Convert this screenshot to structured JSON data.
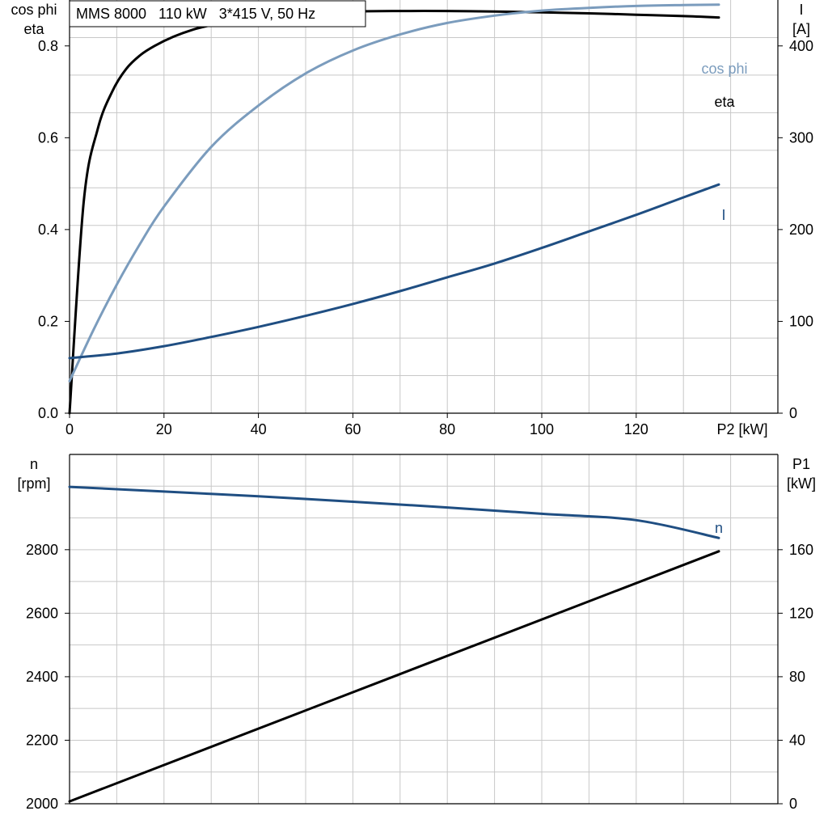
{
  "title": "MMS 8000   110 kW   3*415 V, 50 Hz",
  "chart_data": [
    {
      "type": "line",
      "x_axis": {
        "label": "P2 [kW]",
        "range": [
          0,
          150
        ],
        "ticks": [
          0,
          20,
          40,
          60,
          80,
          100,
          120
        ]
      },
      "y_left": {
        "label_lines": [
          "cos phi",
          "eta"
        ],
        "range": [
          0,
          0.9
        ],
        "ticks": [
          "0.0",
          "0.2",
          "0.4",
          "0.6",
          "0.8"
        ]
      },
      "y_right": {
        "label_lines": [
          "I",
          "[A]"
        ],
        "range": [
          0,
          450
        ],
        "ticks": [
          "0",
          "100",
          "200",
          "300",
          "400"
        ]
      },
      "grid": true,
      "series": [
        {
          "name": "eta",
          "axis": "left",
          "color": "#000000",
          "x": [
            0,
            3,
            6,
            9,
            12,
            15,
            18,
            22,
            26,
            30,
            40,
            50,
            60,
            70,
            80,
            90,
            100,
            110,
            120,
            130,
            137.5
          ],
          "y": [
            0,
            0.46,
            0.62,
            0.7,
            0.75,
            0.78,
            0.8,
            0.82,
            0.835,
            0.845,
            0.862,
            0.871,
            0.875,
            0.876,
            0.876,
            0.875,
            0.873,
            0.871,
            0.868,
            0.865,
            0.862
          ]
        },
        {
          "name": "cos phi",
          "axis": "left",
          "color": "#7b9cbd",
          "x": [
            0,
            5,
            10,
            15,
            20,
            30,
            40,
            50,
            60,
            70,
            80,
            90,
            100,
            110,
            120,
            130,
            137.5
          ],
          "y": [
            0.07,
            0.18,
            0.28,
            0.37,
            0.45,
            0.58,
            0.67,
            0.74,
            0.79,
            0.825,
            0.85,
            0.866,
            0.877,
            0.883,
            0.887,
            0.889,
            0.89
          ]
        },
        {
          "name": "I",
          "axis": "right",
          "color": "#1f4e82",
          "x": [
            0,
            10,
            20,
            30,
            40,
            50,
            60,
            70,
            80,
            90,
            100,
            110,
            120,
            130,
            137.5
          ],
          "y": [
            60,
            65,
            73,
            83,
            94,
            106,
            119,
            133,
            148,
            163,
            180,
            198,
            216,
            235,
            249
          ]
        }
      ]
    },
    {
      "type": "line",
      "x_axis": {
        "label": "",
        "range": [
          0,
          150
        ],
        "ticks": []
      },
      "y_left": {
        "label_lines": [
          "n",
          "[rpm]"
        ],
        "range": [
          2000,
          3100
        ],
        "ticks": [
          "2000",
          "2200",
          "2400",
          "2600",
          "2800"
        ]
      },
      "y_right": {
        "label_lines": [
          "P1",
          "[kW]"
        ],
        "range": [
          0,
          220
        ],
        "ticks": [
          "0",
          "40",
          "80",
          "120",
          "160"
        ]
      },
      "grid": true,
      "series": [
        {
          "name": "n",
          "axis": "left",
          "color": "#1f4e82",
          "x": [
            0,
            20,
            40,
            60,
            80,
            100,
            120,
            137.5
          ],
          "y": [
            2998,
            2983,
            2968,
            2951,
            2933,
            2913,
            2893,
            2837
          ]
        },
        {
          "name": "",
          "axis": "right",
          "color": "#000000",
          "x": [
            0,
            137.5
          ],
          "y": [
            1.5,
            159
          ]
        }
      ]
    }
  ]
}
